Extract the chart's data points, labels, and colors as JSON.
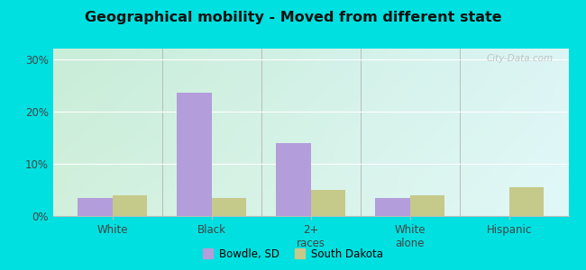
{
  "title": "Geographical mobility - Moved from different state",
  "categories": [
    "White",
    "Black",
    "2+\nraces",
    "White\nalone",
    "Hispanic"
  ],
  "bowdle_values": [
    3.5,
    23.5,
    14.0,
    3.5,
    0.0
  ],
  "sd_values": [
    4.0,
    3.5,
    5.0,
    4.0,
    5.5
  ],
  "bowdle_color": "#b39ddb",
  "sd_color": "#c5c98a",
  "ylim": [
    0,
    32
  ],
  "yticks": [
    0,
    10,
    20,
    30
  ],
  "ytick_labels": [
    "0%",
    "10%",
    "20%",
    "30%"
  ],
  "bar_width": 0.35,
  "bg_color_topleft": "#c8edd8",
  "bg_color_topright": "#d6f0f0",
  "bg_color_bottomleft": "#dff2e0",
  "bg_color_bottomright": "#e8fafa",
  "outer_color": "#00e0e0",
  "legend_labels": [
    "Bowdle, SD",
    "South Dakota"
  ],
  "watermark": "City-Data.com"
}
